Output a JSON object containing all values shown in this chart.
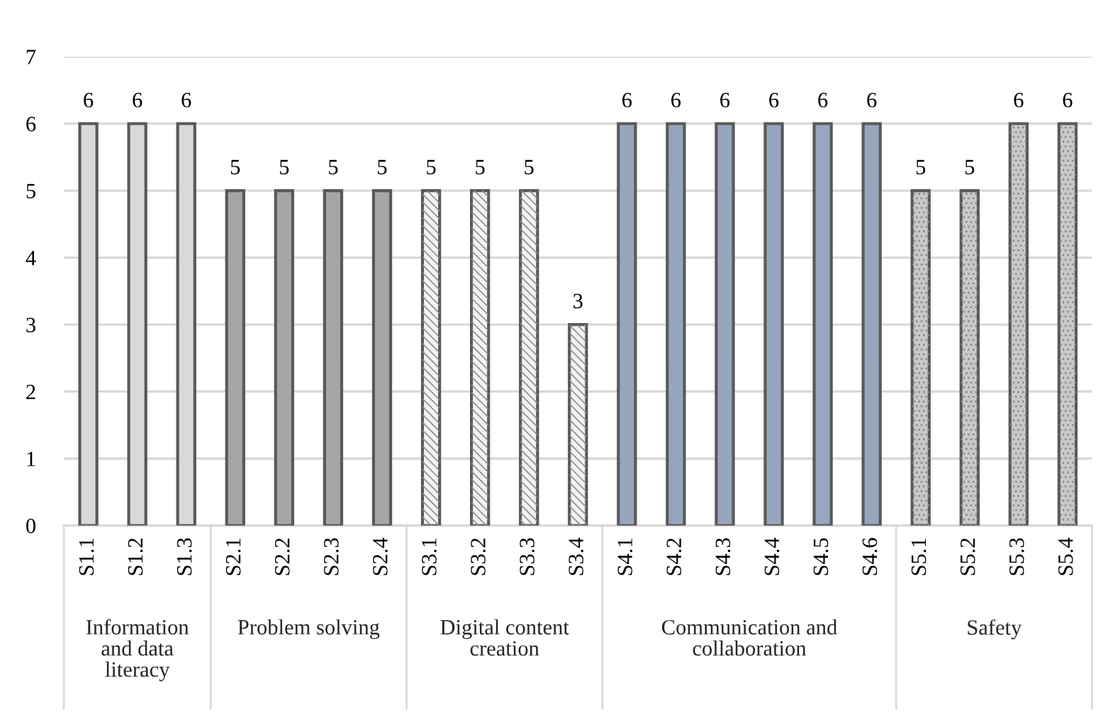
{
  "chart_data": {
    "type": "bar",
    "categories": [
      "S1.1",
      "S1.2",
      "S1.3",
      "S2.1",
      "S2.2",
      "S2.3",
      "S2.4",
      "S3.1",
      "S3.2",
      "S3.3",
      "S3.4",
      "S4.1",
      "S4.2",
      "S4.3",
      "S4.4",
      "S4.5",
      "S4.6",
      "S5.1",
      "S5.2",
      "S5.3",
      "S5.4"
    ],
    "series": [
      {
        "color": "#d9d9d9",
        "values": [
          6,
          6,
          6,
          null,
          null,
          null,
          null,
          null,
          null,
          null,
          null,
          null,
          null,
          null,
          null,
          null,
          null,
          null,
          null,
          null,
          null
        ]
      },
      {
        "color": "#a6a6a6",
        "values": [
          null,
          null,
          null,
          5,
          5,
          5,
          5,
          null,
          null,
          null,
          null,
          null,
          null,
          null,
          null,
          null,
          null,
          null,
          null,
          null,
          null
        ]
      },
      {
        "color": "#f2f2f2",
        "values": [
          null,
          null,
          null,
          null,
          null,
          null,
          null,
          5,
          5,
          5,
          3,
          null,
          null,
          null,
          null,
          null,
          null,
          null,
          null,
          null,
          null
        ]
      },
      {
        "color": "#97a6bd",
        "values": [
          null,
          null,
          null,
          null,
          null,
          null,
          null,
          null,
          null,
          null,
          null,
          6,
          6,
          6,
          6,
          6,
          6,
          null,
          null,
          null,
          null
        ]
      },
      {
        "color": "#c8c8c8",
        "values": [
          null,
          null,
          null,
          null,
          null,
          null,
          null,
          null,
          null,
          null,
          null,
          null,
          null,
          null,
          null,
          null,
          null,
          5,
          5,
          6,
          6
        ]
      }
    ],
    "annotations": [
      "Information\nand data\nliteracy",
      "Problem solving",
      "Digital content\ncreation",
      "Communication and\ncollaboration",
      "Safety"
    ],
    "ylim": [
      0,
      7
    ],
    "yticks": [
      0,
      1,
      2,
      3,
      4,
      5,
      6,
      7
    ],
    "grid": "y",
    "data_labels": true
  }
}
